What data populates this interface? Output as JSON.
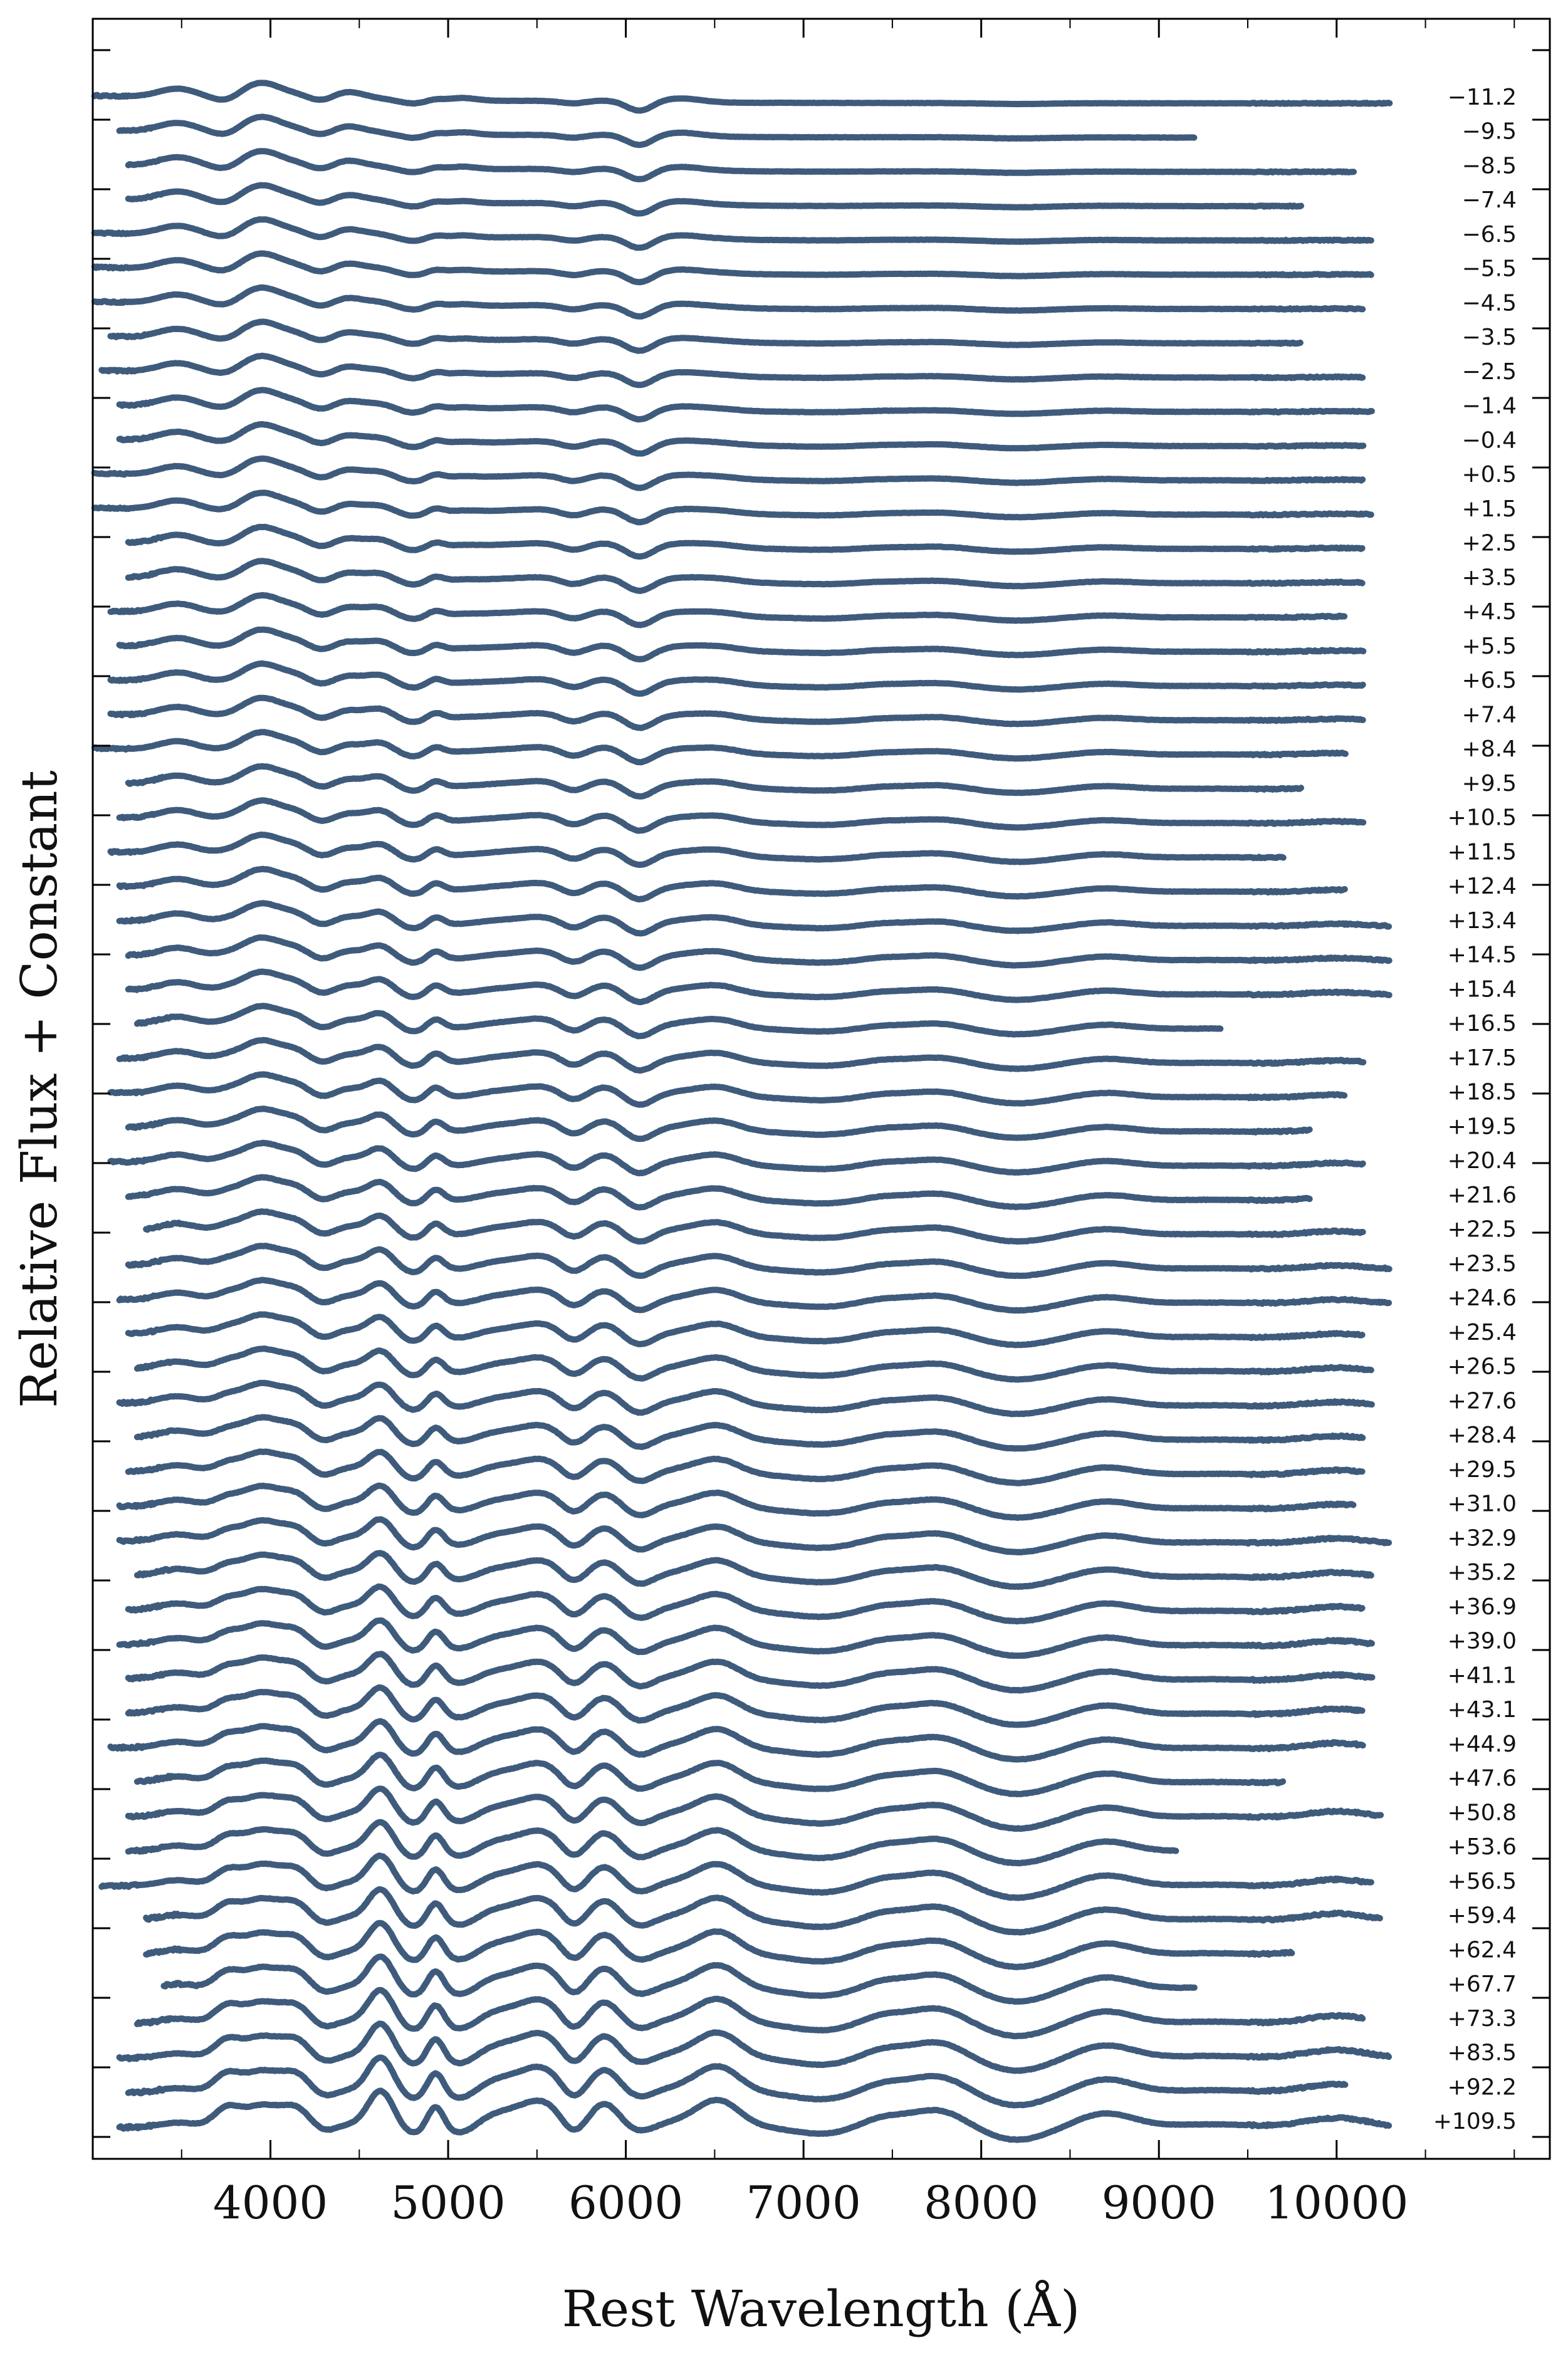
{
  "chart_data": {
    "type": "line",
    "title": "",
    "xlabel": "Rest Wavelength (Å)",
    "ylabel": "Relative Flux + Constant",
    "xlim": [
      3000,
      11200
    ],
    "x_ticks": [
      4000,
      5000,
      6000,
      7000,
      8000,
      9000,
      10000
    ],
    "x_tick_labels": [
      "4000",
      "5000",
      "6000",
      "7000",
      "8000",
      "9000",
      "10000"
    ],
    "x_minor_step": 500,
    "y_tick_labels_shown": false,
    "legend": "none",
    "grid": false,
    "line_color": "#3f5b7c",
    "spectra": [
      {
        "phase": "−11.2",
        "wmin": 3010,
        "wmax": 10300
      },
      {
        "phase": "−9.5",
        "wmin": 3150,
        "wmax": 9200
      },
      {
        "phase": "−8.5",
        "wmin": 3200,
        "wmax": 10100
      },
      {
        "phase": "−7.4",
        "wmin": 3200,
        "wmax": 9800
      },
      {
        "phase": "−6.5",
        "wmin": 3010,
        "wmax": 10200
      },
      {
        "phase": "−5.5",
        "wmin": 3010,
        "wmax": 10200
      },
      {
        "phase": "−4.5",
        "wmin": 3010,
        "wmax": 10150
      },
      {
        "phase": "−3.5",
        "wmin": 3100,
        "wmax": 9800
      },
      {
        "phase": "−2.5",
        "wmin": 3050,
        "wmax": 10150
      },
      {
        "phase": "−1.4",
        "wmin": 3150,
        "wmax": 10200
      },
      {
        "phase": "−0.4",
        "wmin": 3150,
        "wmax": 10150
      },
      {
        "phase": "+0.5",
        "wmin": 3010,
        "wmax": 10150
      },
      {
        "phase": "+1.5",
        "wmin": 3010,
        "wmax": 10200
      },
      {
        "phase": "+2.5",
        "wmin": 3200,
        "wmax": 10150
      },
      {
        "phase": "+3.5",
        "wmin": 3200,
        "wmax": 10150
      },
      {
        "phase": "+4.5",
        "wmin": 3100,
        "wmax": 10050
      },
      {
        "phase": "+5.5",
        "wmin": 3150,
        "wmax": 10150
      },
      {
        "phase": "+6.5",
        "wmin": 3100,
        "wmax": 10150
      },
      {
        "phase": "+7.4",
        "wmin": 3100,
        "wmax": 10150
      },
      {
        "phase": "+8.4",
        "wmin": 3010,
        "wmax": 10050
      },
      {
        "phase": "+9.5",
        "wmin": 3200,
        "wmax": 9800
      },
      {
        "phase": "+10.5",
        "wmin": 3150,
        "wmax": 10150
      },
      {
        "phase": "+11.5",
        "wmin": 3100,
        "wmax": 9700
      },
      {
        "phase": "+12.4",
        "wmin": 3150,
        "wmax": 10050
      },
      {
        "phase": "+13.4",
        "wmin": 3150,
        "wmax": 10300
      },
      {
        "phase": "+14.5",
        "wmin": 3200,
        "wmax": 10300
      },
      {
        "phase": "+15.4",
        "wmin": 3200,
        "wmax": 10300
      },
      {
        "phase": "+16.5",
        "wmin": 3250,
        "wmax": 9350
      },
      {
        "phase": "+17.5",
        "wmin": 3150,
        "wmax": 10150
      },
      {
        "phase": "+18.5",
        "wmin": 3100,
        "wmax": 10050
      },
      {
        "phase": "+19.5",
        "wmin": 3200,
        "wmax": 9850
      },
      {
        "phase": "+20.4",
        "wmin": 3100,
        "wmax": 10150
      },
      {
        "phase": "+21.6",
        "wmin": 3200,
        "wmax": 9850
      },
      {
        "phase": "+22.5",
        "wmin": 3300,
        "wmax": 10150
      },
      {
        "phase": "+23.5",
        "wmin": 3200,
        "wmax": 10300
      },
      {
        "phase": "+24.6",
        "wmin": 3150,
        "wmax": 10300
      },
      {
        "phase": "+25.4",
        "wmin": 3200,
        "wmax": 10150
      },
      {
        "phase": "+26.5",
        "wmin": 3250,
        "wmax": 10200
      },
      {
        "phase": "+27.6",
        "wmin": 3150,
        "wmax": 10200
      },
      {
        "phase": "+28.4",
        "wmin": 3250,
        "wmax": 10150
      },
      {
        "phase": "+29.5",
        "wmin": 3200,
        "wmax": 10150
      },
      {
        "phase": "+31.0",
        "wmin": 3150,
        "wmax": 10100
      },
      {
        "phase": "+32.9",
        "wmin": 3150,
        "wmax": 10300
      },
      {
        "phase": "+35.2",
        "wmin": 3250,
        "wmax": 10200
      },
      {
        "phase": "+36.9",
        "wmin": 3200,
        "wmax": 10150
      },
      {
        "phase": "+39.0",
        "wmin": 3150,
        "wmax": 10200
      },
      {
        "phase": "+41.1",
        "wmin": 3200,
        "wmax": 10200
      },
      {
        "phase": "+43.1",
        "wmin": 3200,
        "wmax": 10150
      },
      {
        "phase": "+44.9",
        "wmin": 3100,
        "wmax": 10150
      },
      {
        "phase": "+47.6",
        "wmin": 3250,
        "wmax": 9700
      },
      {
        "phase": "+50.8",
        "wmin": 3200,
        "wmax": 10250
      },
      {
        "phase": "+53.6",
        "wmin": 3200,
        "wmax": 9100
      },
      {
        "phase": "+56.5",
        "wmin": 3050,
        "wmax": 10200
      },
      {
        "phase": "+59.4",
        "wmin": 3300,
        "wmax": 10250
      },
      {
        "phase": "+62.4",
        "wmin": 3300,
        "wmax": 9750
      },
      {
        "phase": "+67.7",
        "wmin": 3400,
        "wmax": 9200
      },
      {
        "phase": "+73.3",
        "wmin": 3250,
        "wmax": 10150
      },
      {
        "phase": "+83.5",
        "wmin": 3150,
        "wmax": 10300
      },
      {
        "phase": "+92.2",
        "wmin": 3200,
        "wmax": 10050
      },
      {
        "phase": "+109.5",
        "wmin": 3150,
        "wmax": 10300
      }
    ]
  }
}
